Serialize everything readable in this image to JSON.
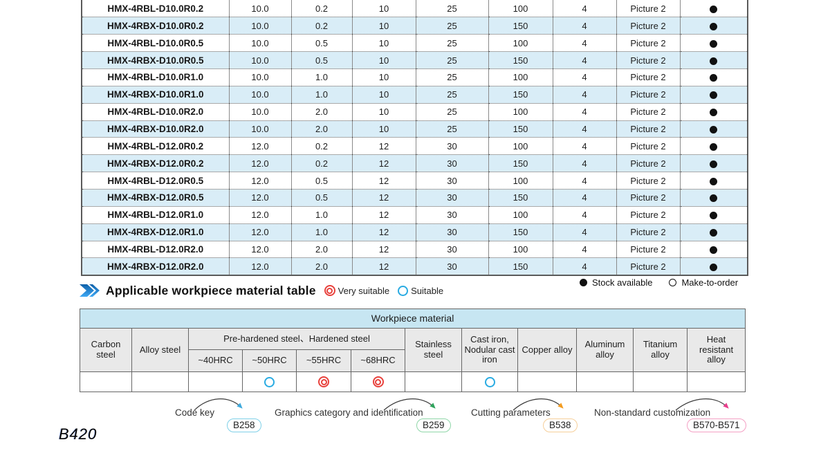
{
  "page_number": "B420",
  "spec_table": {
    "rows": [
      {
        "model": "HMX-4RBL-D10.0R0.2",
        "values": [
          "10.0",
          "0.2",
          "10",
          "25",
          "100",
          "4",
          "Picture 2"
        ],
        "stock": "available"
      },
      {
        "model": "HMX-4RBX-D10.0R0.2",
        "values": [
          "10.0",
          "0.2",
          "10",
          "25",
          "150",
          "4",
          "Picture 2"
        ],
        "stock": "available"
      },
      {
        "model": "HMX-4RBL-D10.0R0.5",
        "values": [
          "10.0",
          "0.5",
          "10",
          "25",
          "100",
          "4",
          "Picture 2"
        ],
        "stock": "available"
      },
      {
        "model": "HMX-4RBX-D10.0R0.5",
        "values": [
          "10.0",
          "0.5",
          "10",
          "25",
          "150",
          "4",
          "Picture 2"
        ],
        "stock": "available"
      },
      {
        "model": "HMX-4RBL-D10.0R1.0",
        "values": [
          "10.0",
          "1.0",
          "10",
          "25",
          "100",
          "4",
          "Picture 2"
        ],
        "stock": "available"
      },
      {
        "model": "HMX-4RBX-D10.0R1.0",
        "values": [
          "10.0",
          "1.0",
          "10",
          "25",
          "150",
          "4",
          "Picture 2"
        ],
        "stock": "available"
      },
      {
        "model": "HMX-4RBL-D10.0R2.0",
        "values": [
          "10.0",
          "2.0",
          "10",
          "25",
          "100",
          "4",
          "Picture 2"
        ],
        "stock": "available"
      },
      {
        "model": "HMX-4RBX-D10.0R2.0",
        "values": [
          "10.0",
          "2.0",
          "10",
          "25",
          "150",
          "4",
          "Picture 2"
        ],
        "stock": "available"
      },
      {
        "model": "HMX-4RBL-D12.0R0.2",
        "values": [
          "12.0",
          "0.2",
          "12",
          "30",
          "100",
          "4",
          "Picture 2"
        ],
        "stock": "available"
      },
      {
        "model": "HMX-4RBX-D12.0R0.2",
        "values": [
          "12.0",
          "0.2",
          "12",
          "30",
          "150",
          "4",
          "Picture 2"
        ],
        "stock": "available"
      },
      {
        "model": "HMX-4RBL-D12.0R0.5",
        "values": [
          "12.0",
          "0.5",
          "12",
          "30",
          "100",
          "4",
          "Picture 2"
        ],
        "stock": "available"
      },
      {
        "model": "HMX-4RBX-D12.0R0.5",
        "values": [
          "12.0",
          "0.5",
          "12",
          "30",
          "150",
          "4",
          "Picture 2"
        ],
        "stock": "available"
      },
      {
        "model": "HMX-4RBL-D12.0R1.0",
        "values": [
          "12.0",
          "1.0",
          "12",
          "30",
          "100",
          "4",
          "Picture 2"
        ],
        "stock": "available"
      },
      {
        "model": "HMX-4RBX-D12.0R1.0",
        "values": [
          "12.0",
          "1.0",
          "12",
          "30",
          "150",
          "4",
          "Picture 2"
        ],
        "stock": "available"
      },
      {
        "model": "HMX-4RBL-D12.0R2.0",
        "values": [
          "12.0",
          "2.0",
          "12",
          "30",
          "100",
          "4",
          "Picture 2"
        ],
        "stock": "available"
      },
      {
        "model": "HMX-4RBX-D12.0R2.0",
        "values": [
          "12.0",
          "2.0",
          "12",
          "30",
          "150",
          "4",
          "Picture 2"
        ],
        "stock": "available"
      }
    ]
  },
  "stock_legend": {
    "available_label": "Stock available",
    "make_to_order_label": "Make-to-order"
  },
  "section_header": {
    "title": "Applicable workpiece material table",
    "very_suitable_label": "Very suitable",
    "suitable_label": "Suitable"
  },
  "material_table": {
    "title": "Workpiece material",
    "hardened_group_label": "Pre-hardened steel、Hardened steel",
    "columns": [
      {
        "label": "Carbon steel",
        "rating": ""
      },
      {
        "label": "Alloy steel",
        "rating": ""
      },
      {
        "label": "~40HRC",
        "rating": ""
      },
      {
        "label": "~50HRC",
        "rating": "suitable"
      },
      {
        "label": "~55HRC",
        "rating": "very_suitable"
      },
      {
        "label": "~68HRC",
        "rating": "very_suitable"
      },
      {
        "label": "Stainless steel",
        "rating": ""
      },
      {
        "label": "Cast iron, Nodular cast iron",
        "rating": "suitable"
      },
      {
        "label": "Copper alloy",
        "rating": ""
      },
      {
        "label": "Aluminum alloy",
        "rating": ""
      },
      {
        "label": "Titanium alloy",
        "rating": ""
      },
      {
        "label": "Heat resistant alloy",
        "rating": ""
      }
    ]
  },
  "annotations": [
    {
      "label": "Code key",
      "badge": "B258",
      "color": "#3FA9DC",
      "border_color": "#7FD0E8"
    },
    {
      "label": "Graphics category and identification",
      "badge": "B259",
      "color": "#2FA35C",
      "border_color": "#8FD6A8"
    },
    {
      "label": "Cutting parameters",
      "badge": "B538",
      "color": "#F29B20",
      "border_color": "#F6CF9A"
    },
    {
      "label": "Non-standard customization",
      "badge": "B570-B571",
      "color": "#E83E8C",
      "border_color": "#F4A0C4"
    }
  ],
  "colors": {
    "row_alt": "#d9edf7",
    "material_bar": "#c7e6f2",
    "header_gray": "#e9e9e9",
    "very_suitable_red": "#E8413C",
    "suitable_blue": "#29ABE2"
  }
}
